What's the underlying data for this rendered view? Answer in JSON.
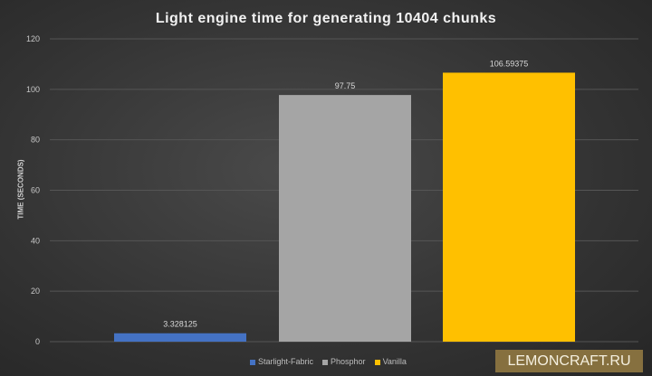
{
  "chart_data": {
    "type": "bar",
    "title": "Light engine time for generating 10404 chunks",
    "xlabel": "",
    "ylabel": "TIME (SECONDS)",
    "ylim": [
      0,
      120
    ],
    "yticks": [
      0,
      20,
      40,
      60,
      80,
      100,
      120
    ],
    "grid": true,
    "legend": "bottom",
    "series": [
      {
        "name": "Starlight-Fabric",
        "value": 3.328125,
        "label": "3.328125",
        "color": "#4472c4"
      },
      {
        "name": "Phosphor",
        "value": 97.75,
        "label": "97.75",
        "color": "#a5a5a5"
      },
      {
        "name": "Vanilla",
        "value": 106.59375,
        "label": "106.59375",
        "color": "#ffc000"
      }
    ]
  },
  "watermark": "LEMONCRAFT.RU"
}
